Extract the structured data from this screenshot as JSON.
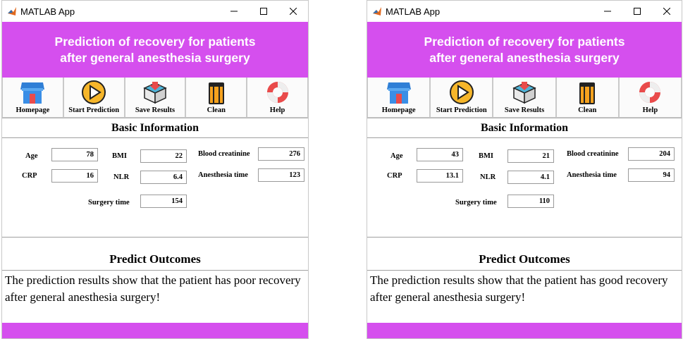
{
  "colors": {
    "banner": "#d54fee",
    "footer": "#d54fee"
  },
  "left": {
    "title": "MATLAB App",
    "banner_line1": "Prediction of recovery for patients",
    "banner_line2": "after general anesthesia surgery",
    "toolbar": {
      "homepage": "Homepage",
      "start": "Start Prediction",
      "save": "Save Results",
      "clean": "Clean",
      "help": "Help"
    },
    "basic_title": "Basic Information",
    "labels": {
      "age": "Age",
      "crp": "CRP",
      "bmi": "BMI",
      "nlr": "NLR",
      "creat": "Blood creatinine",
      "anes": "Anesthesia time",
      "surg": "Surgery time"
    },
    "values": {
      "age": "78",
      "crp": "16",
      "bmi": "22",
      "nlr": "6.4",
      "creat": "276",
      "anes": "123",
      "surg": "154"
    },
    "predict_title": "Predict Outcomes",
    "result": "The prediction results show that the patient has poor recovery after general anesthesia surgery!"
  },
  "right": {
    "title": "MATLAB App",
    "banner_line1": "Prediction of recovery for patients",
    "banner_line2": "after general anesthesia surgery",
    "toolbar": {
      "homepage": "Homepage",
      "start": "Start Prediction",
      "save": "Save Results",
      "clean": "Clean",
      "help": "Help"
    },
    "basic_title": "Basic Information",
    "labels": {
      "age": "Age",
      "crp": "CRP",
      "bmi": "BMI",
      "nlr": "NLR",
      "creat": "Blood creatinine",
      "anes": "Anesthesia time",
      "surg": "Surgery time"
    },
    "values": {
      "age": "43",
      "crp": "13.1",
      "bmi": "21",
      "nlr": "4.1",
      "creat": "204",
      "anes": "94",
      "surg": "110"
    },
    "predict_title": "Predict Outcomes",
    "result": "The prediction results show that the patient has good recovery after general anesthesia surgery!"
  }
}
